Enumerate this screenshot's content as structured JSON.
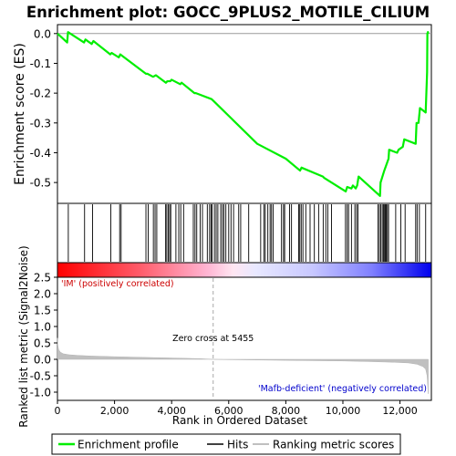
{
  "chart_data": {
    "type": "line",
    "title": "Enrichment plot: GOCC_9PLUS2_MOTILE_CILIUM",
    "top_panel": {
      "ylabel": "Enrichment score (ES)",
      "ylim": [
        -0.57,
        0.03
      ],
      "yticks": [
        0.0,
        -0.1,
        -0.2,
        -0.3,
        -0.4,
        -0.5
      ],
      "ytick_labels": [
        "0.0",
        "-0.1",
        "-0.2",
        "-0.3",
        "-0.4",
        "-0.5"
      ],
      "series": [
        {
          "name": "Enrichment profile",
          "color": "#00ee00",
          "x": [
            0,
            340,
            370,
            930,
            980,
            1200,
            1260,
            1850,
            1900,
            2150,
            2200,
            3100,
            3150,
            3350,
            3450,
            3800,
            3850,
            3950,
            4000,
            4300,
            4350,
            4800,
            4850,
            5400,
            5455,
            7000,
            7200,
            7900,
            8000,
            8500,
            8550,
            9300,
            9350,
            10100,
            10150,
            10300,
            10350,
            10450,
            10500,
            10550,
            11300,
            11320,
            11450,
            11600,
            11620,
            11900,
            11950,
            12100,
            12150,
            12550,
            12580,
            12650,
            12700,
            12900,
            12950,
            12960,
            12980,
            12990
          ],
          "y": [
            0.0,
            -0.03,
            0.005,
            -0.03,
            -0.02,
            -0.035,
            -0.025,
            -0.07,
            -0.065,
            -0.08,
            -0.07,
            -0.135,
            -0.135,
            -0.145,
            -0.14,
            -0.165,
            -0.16,
            -0.16,
            -0.155,
            -0.17,
            -0.165,
            -0.2,
            -0.2,
            -0.22,
            -0.225,
            -0.37,
            -0.38,
            -0.415,
            -0.42,
            -0.46,
            -0.45,
            -0.48,
            -0.485,
            -0.53,
            -0.515,
            -0.52,
            -0.51,
            -0.52,
            -0.51,
            -0.48,
            -0.545,
            -0.5,
            -0.46,
            -0.42,
            -0.39,
            -0.4,
            -0.39,
            -0.38,
            -0.355,
            -0.37,
            -0.3,
            -0.3,
            -0.25,
            -0.265,
            -0.13,
            0.0,
            0.005,
            0.0
          ]
        }
      ]
    },
    "hits_panel": {
      "name": "Hits",
      "positions": [
        380,
        950,
        1230,
        1870,
        2180,
        2230,
        3100,
        3180,
        3360,
        3420,
        3480,
        3790,
        3830,
        3880,
        3930,
        3970,
        4150,
        4250,
        4320,
        4420,
        4760,
        4820,
        4880,
        5000,
        5080,
        5250,
        5330,
        5380,
        5420,
        5500,
        5560,
        5620,
        5720,
        5780,
        5830,
        5900,
        6000,
        6080,
        6170,
        6350,
        6420,
        6700,
        7120,
        7230,
        7280,
        7370,
        7450,
        7500,
        7560,
        7850,
        7920,
        7960,
        8130,
        8200,
        8450,
        8490,
        8540,
        8600,
        8700,
        8850,
        9000,
        9150,
        9310,
        9400,
        9470,
        9600,
        10090,
        10150,
        10200,
        10300,
        10420,
        10480,
        10530,
        11230,
        11280,
        11330,
        11380,
        11420,
        11460,
        11490,
        11520,
        11560,
        11600,
        11850,
        12030,
        12180,
        12550,
        12600,
        12680,
        12900
      ]
    },
    "metric_panel": {
      "name": "Ranking metric scores",
      "ylabel": "Ranked list metric (Signal2Noise)",
      "xlabel": "Rank in Ordered Dataset",
      "ylim": [
        -1.25,
        2.5
      ],
      "yticks": [
        2.5,
        2.0,
        1.5,
        1.0,
        0.5,
        0.0,
        -0.5,
        -1.0
      ],
      "ytick_labels": [
        "2.5",
        "2.0",
        "1.5",
        "1.0",
        "0.5",
        "0.0",
        "-0.5",
        "-1.0"
      ],
      "x": [
        0,
        10,
        40,
        100,
        200,
        400,
        700,
        1200,
        2000,
        3000,
        4000,
        5000,
        5455,
        6000,
        7000,
        8000,
        9000,
        10000,
        11000,
        11800,
        12300,
        12600,
        12800,
        12900,
        12950,
        12990
      ],
      "y": [
        0.65,
        0.45,
        0.3,
        0.22,
        0.17,
        0.14,
        0.12,
        0.1,
        0.08,
        0.06,
        0.04,
        0.02,
        0.0,
        -0.01,
        -0.02,
        -0.03,
        -0.04,
        -0.05,
        -0.07,
        -0.09,
        -0.11,
        -0.15,
        -0.22,
        -0.3,
        -0.5,
        -1.05
      ],
      "zero_cross_label": "Zero cross at 5455",
      "zero_cross": 5455,
      "positive_label": "'IM' (positively correlated)",
      "negative_label": "'Mafb-deficient' (negatively correlated)"
    },
    "xlim": [
      0,
      13100
    ],
    "xticks": [
      0,
      2000,
      4000,
      6000,
      8000,
      10000,
      12000
    ],
    "xtick_labels": [
      "0",
      "2,000",
      "4,000",
      "6,000",
      "8,000",
      "10,000",
      "12,000"
    ],
    "legend": {
      "placement": "bottom",
      "entries": [
        {
          "name": "Enrichment profile",
          "color": "#00ee00"
        },
        {
          "name": "Hits",
          "color": "#000000"
        },
        {
          "name": "Ranking metric scores",
          "color": "#c0c0c0"
        }
      ]
    },
    "colors": {
      "profile": "#00ee00",
      "metric_fill": "#c0c0c0",
      "positive_label": "#cc0000",
      "negative_label": "#0000cc",
      "positive_end": "#ff0000",
      "negative_end": "#0000ff"
    }
  }
}
